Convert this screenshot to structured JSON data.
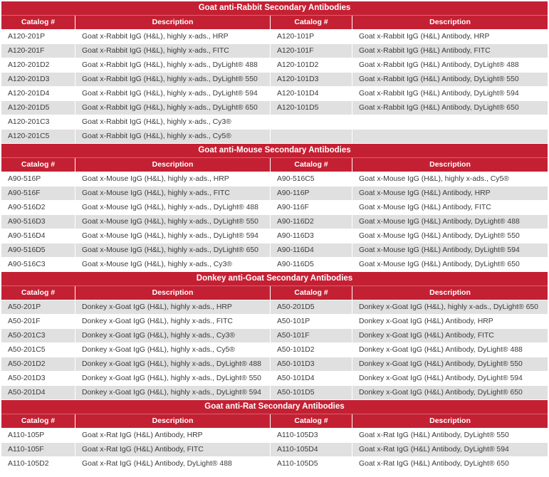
{
  "colors": {
    "header_red": "#C42033",
    "row_gray": "#E0E0E0",
    "body_text": "#3B3B3B",
    "header_text": "#FFFFFF"
  },
  "table": {
    "columns": [
      "Catalog #",
      "Description",
      "Catalog #",
      "Description"
    ],
    "sections": [
      {
        "title": "Goat anti-Rabbit Secondary Antibodies",
        "stripe_start": "white",
        "rows": [
          [
            "A120-201P",
            "Goat x-Rabbit IgG (H&L), highly x-ads., HRP",
            "A120-101P",
            "Goat x-Rabbit IgG (H&L) Antibody, HRP"
          ],
          [
            "A120-201F",
            "Goat x-Rabbit IgG (H&L), highly x-ads., FITC",
            "A120-101F",
            "Goat x-Rabbit IgG (H&L) Antibody, FITC"
          ],
          [
            "A120-201D2",
            "Goat x-Rabbit IgG (H&L), highly x-ads., DyLight® 488",
            "A120-101D2",
            "Goat x-Rabbit IgG (H&L) Antibody, DyLight® 488"
          ],
          [
            "A120-201D3",
            "Goat x-Rabbit IgG (H&L), highly x-ads., DyLight® 550",
            "A120-101D3",
            "Goat x-Rabbit IgG (H&L) Antibody, DyLight® 550"
          ],
          [
            "A120-201D4",
            "Goat x-Rabbit IgG (H&L), highly x-ads., DyLight® 594",
            "A120-101D4",
            "Goat x-Rabbit IgG (H&L) Antibody, DyLight® 594"
          ],
          [
            "A120-201D5",
            "Goat x-Rabbit IgG (H&L), highly x-ads., DyLight® 650",
            "A120-101D5",
            "Goat x-Rabbit IgG (H&L) Antibody, DyLight® 650"
          ],
          [
            "A120-201C3",
            "Goat x-Rabbit IgG (H&L), highly x-ads., Cy3®",
            "",
            ""
          ],
          [
            "A120-201C5",
            "Goat x-Rabbit IgG (H&L), highly x-ads., Cy5®",
            "",
            ""
          ]
        ]
      },
      {
        "title": "Goat anti-Mouse Secondary Antibodies",
        "stripe_start": "white",
        "rows": [
          [
            "A90-516P",
            "Goat x-Mouse IgG (H&L), highly x-ads., HRP",
            "A90-516C5",
            "Goat x-Mouse IgG (H&L), highly x-ads., Cy5®"
          ],
          [
            "A90-516F",
            "Goat x-Mouse IgG (H&L), highly x-ads., FITC",
            "A90-116P",
            "Goat x-Mouse IgG (H&L) Antibody, HRP"
          ],
          [
            "A90-516D2",
            "Goat x-Mouse IgG (H&L), highly x-ads., DyLight® 488",
            "A90-116F",
            "Goat x-Mouse IgG (H&L) Antibody, FITC"
          ],
          [
            "A90-516D3",
            "Goat x-Mouse IgG (H&L), highly x-ads., DyLight® 550",
            "A90-116D2",
            "Goat x-Mouse IgG (H&L) Antibody, DyLight® 488"
          ],
          [
            "A90-516D4",
            "Goat x-Mouse IgG (H&L), highly x-ads., DyLight® 594",
            "A90-116D3",
            "Goat x-Mouse IgG (H&L) Antibody, DyLight® 550"
          ],
          [
            "A90-516D5",
            "Goat x-Mouse IgG (H&L), highly x-ads., DyLight® 650",
            "A90-116D4",
            "Goat x-Mouse IgG (H&L) Antibody, DyLight® 594"
          ],
          [
            "A90-516C3",
            "Goat x-Mouse IgG (H&L), highly x-ads., Cy3®",
            "A90-116D5",
            "Goat x-Mouse IgG (H&L) Antibody, DyLight® 650"
          ]
        ]
      },
      {
        "title": "Donkey anti-Goat Secondary Antibodies",
        "stripe_start": "gray",
        "rows": [
          [
            "A50-201P",
            "Donkey x-Goat IgG (H&L), highly x-ads., HRP",
            "A50-201D5",
            "Donkey x-Goat IgG (H&L), highly x-ads., DyLight® 650"
          ],
          [
            "A50-201F",
            "Donkey x-Goat IgG (H&L), highly x-ads., FITC",
            "A50-101P",
            "Donkey x-Goat IgG (H&L) Antibody, HRP"
          ],
          [
            "A50-201C3",
            "Donkey x-Goat IgG (H&L), highly x-ads., Cy3®",
            "A50-101F",
            "Donkey x-Goat IgG (H&L) Antibody, FITC"
          ],
          [
            "A50-201C5",
            "Donkey x-Goat IgG (H&L), highly x-ads., Cy5®",
            "A50-101D2",
            "Donkey x-Goat IgG (H&L) Antibody, DyLight® 488"
          ],
          [
            "A50-201D2",
            "Donkey x-Goat IgG (H&L), highly x-ads., DyLight® 488",
            "A50-101D3",
            "Donkey x-Goat IgG (H&L) Antibody, DyLight® 550"
          ],
          [
            "A50-201D3",
            "Donkey x-Goat IgG (H&L), highly x-ads., DyLight® 550",
            "A50-101D4",
            "Donkey x-Goat IgG (H&L) Antibody, DyLight® 594"
          ],
          [
            "A50-201D4",
            "Donkey x-Goat IgG (H&L), highly x-ads., DyLight® 594",
            "A50-101D5",
            "Donkey x-Goat IgG (H&L) Antibody, DyLight® 650"
          ]
        ]
      },
      {
        "title": "Goat anti-Rat Secondary Antibodies",
        "stripe_start": "white",
        "rows": [
          [
            "A110-105P",
            "Goat x-Rat IgG (H&L) Antibody, HRP",
            "A110-105D3",
            "Goat x-Rat IgG (H&L) Antibody, DyLight® 550"
          ],
          [
            "A110-105F",
            "Goat x-Rat IgG (H&L) Antibody, FITC",
            "A110-105D4",
            "Goat x-Rat IgG (H&L) Antibody, DyLight® 594"
          ],
          [
            "A110-105D2",
            "Goat x-Rat IgG (H&L) Antibody, DyLight® 488",
            "A110-105D5",
            "Goat x-Rat IgG (H&L) Antibody, DyLight® 650"
          ]
        ]
      }
    ]
  }
}
